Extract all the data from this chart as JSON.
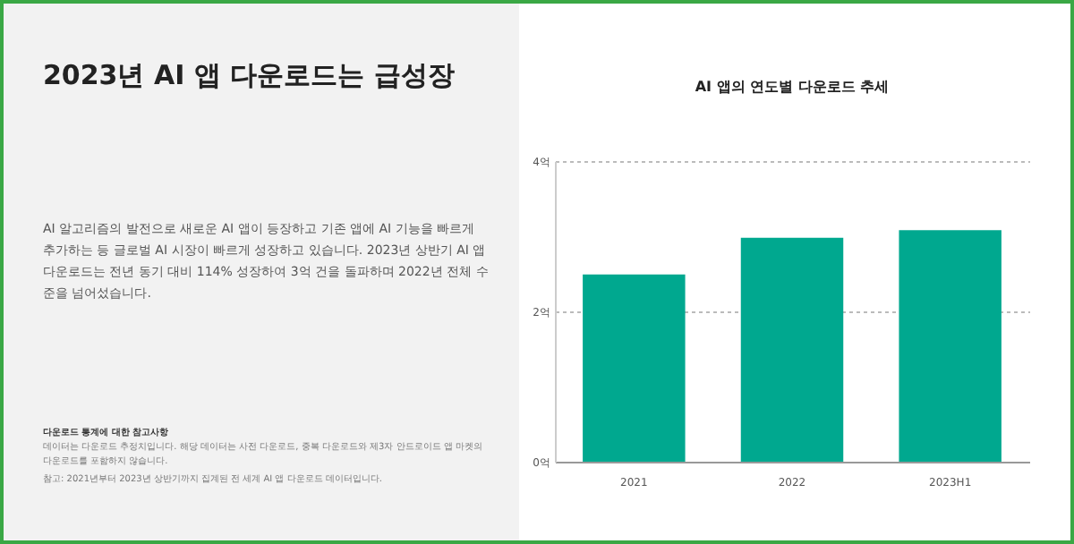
{
  "chart_data": {
    "type": "bar",
    "title": "2023년 AI 앱 다운로드는 급성장",
    "subtitle": "AI 앱의 연도별 다운로드 추세",
    "categories": [
      "2021",
      "2022",
      "2023H1"
    ],
    "values": [
      2.49,
      2.98,
      3.08
    ],
    "color": "#00a88f",
    "ylim": [
      0,
      4
    ],
    "yticks": [
      {
        "value": 0,
        "label": "0억"
      },
      {
        "value": 2,
        "label": "2억"
      },
      {
        "value": 4,
        "label": "4억"
      }
    ],
    "grid": "y",
    "annotations": [
      "AI 알고리즘의 발전으로 새로운 AI 앱이 등장하고 기존 앱에 AI 기능을 빠르게 추가하는 등 글로벌 AI 시장이 빠르게 성장하고 있습니다. 2023년 상반기 AI 앱 다운로드는 전년 동기 대비 114% 성장하여 3억 건을 돌파하며 2022년 전체 수준을 넘어섰습니다.",
      "다운로드 통계에 대한 참고사항",
      "데이터는 다운로드 추정치입니다. 해당 데이터는 사전 다운로드, 중복 다운로드와 제3자 안드로이드 앱 마켓의 다운로드를 포함하지 않습니다.",
      "참고: 2021년부터 2023년 상반기까지 집계된 전 세계 AI 앱 다운로드 데이터입니다."
    ]
  }
}
